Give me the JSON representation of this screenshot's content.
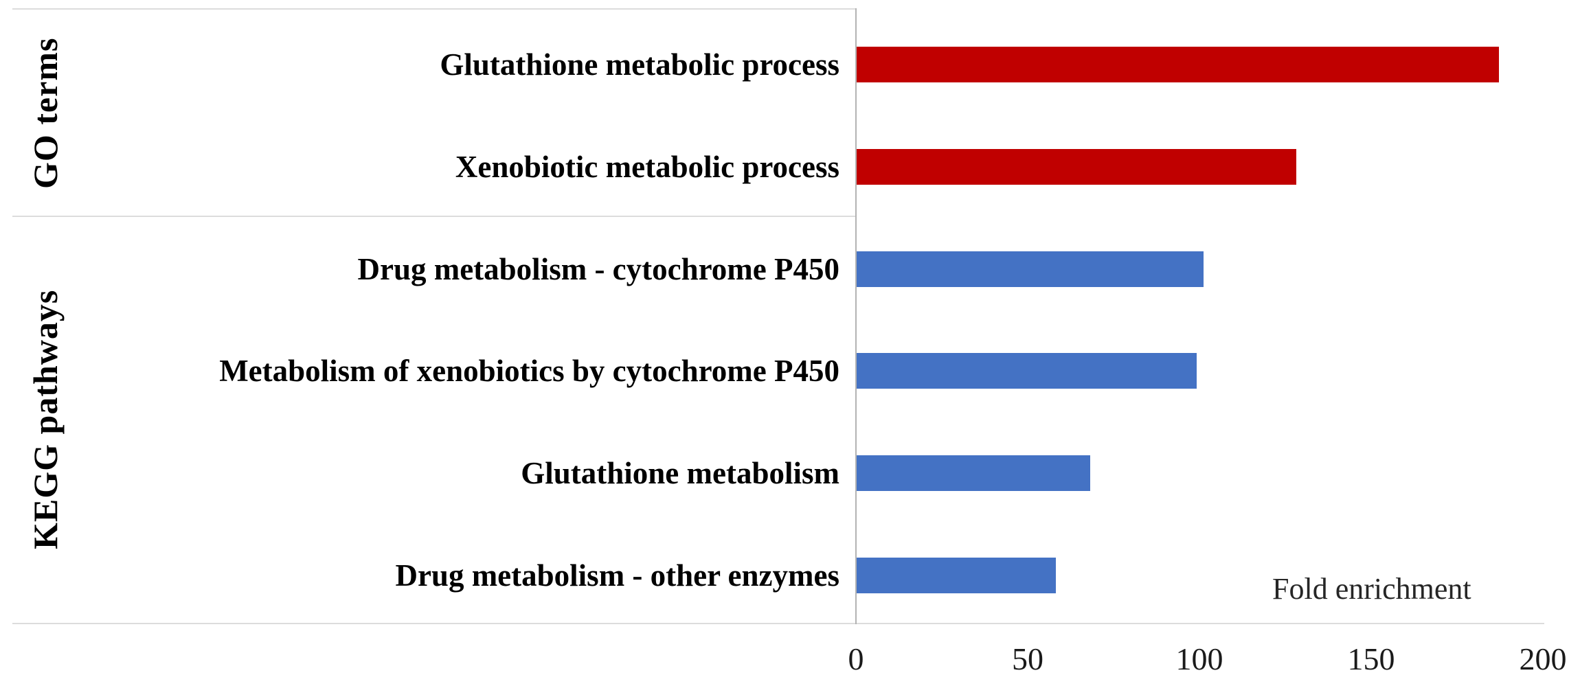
{
  "chart_data": {
    "type": "bar",
    "orientation": "horizontal",
    "xlabel": "Fold enrichment",
    "xlim": [
      0,
      200
    ],
    "xticks": [
      "0",
      "50",
      "100",
      "150",
      "200"
    ],
    "grid": false,
    "legend_position": "none",
    "groups": [
      {
        "name": "GO terms",
        "color": "#c00000",
        "items": [
          {
            "label": "Glutathione metabolic process",
            "value": 187
          },
          {
            "label": "Xenobiotic metabolic process",
            "value": 128
          }
        ]
      },
      {
        "name": "KEGG pathways",
        "color": "#4472c4",
        "items": [
          {
            "label": "Drug metabolism - cytochrome P450",
            "value": 101
          },
          {
            "label": "Metabolism of xenobiotics by cytochrome P450",
            "value": 99
          },
          {
            "label": "Glutathione metabolism",
            "value": 68
          },
          {
            "label": "Drug metabolism - other enzymes",
            "value": 58
          }
        ]
      }
    ]
  }
}
